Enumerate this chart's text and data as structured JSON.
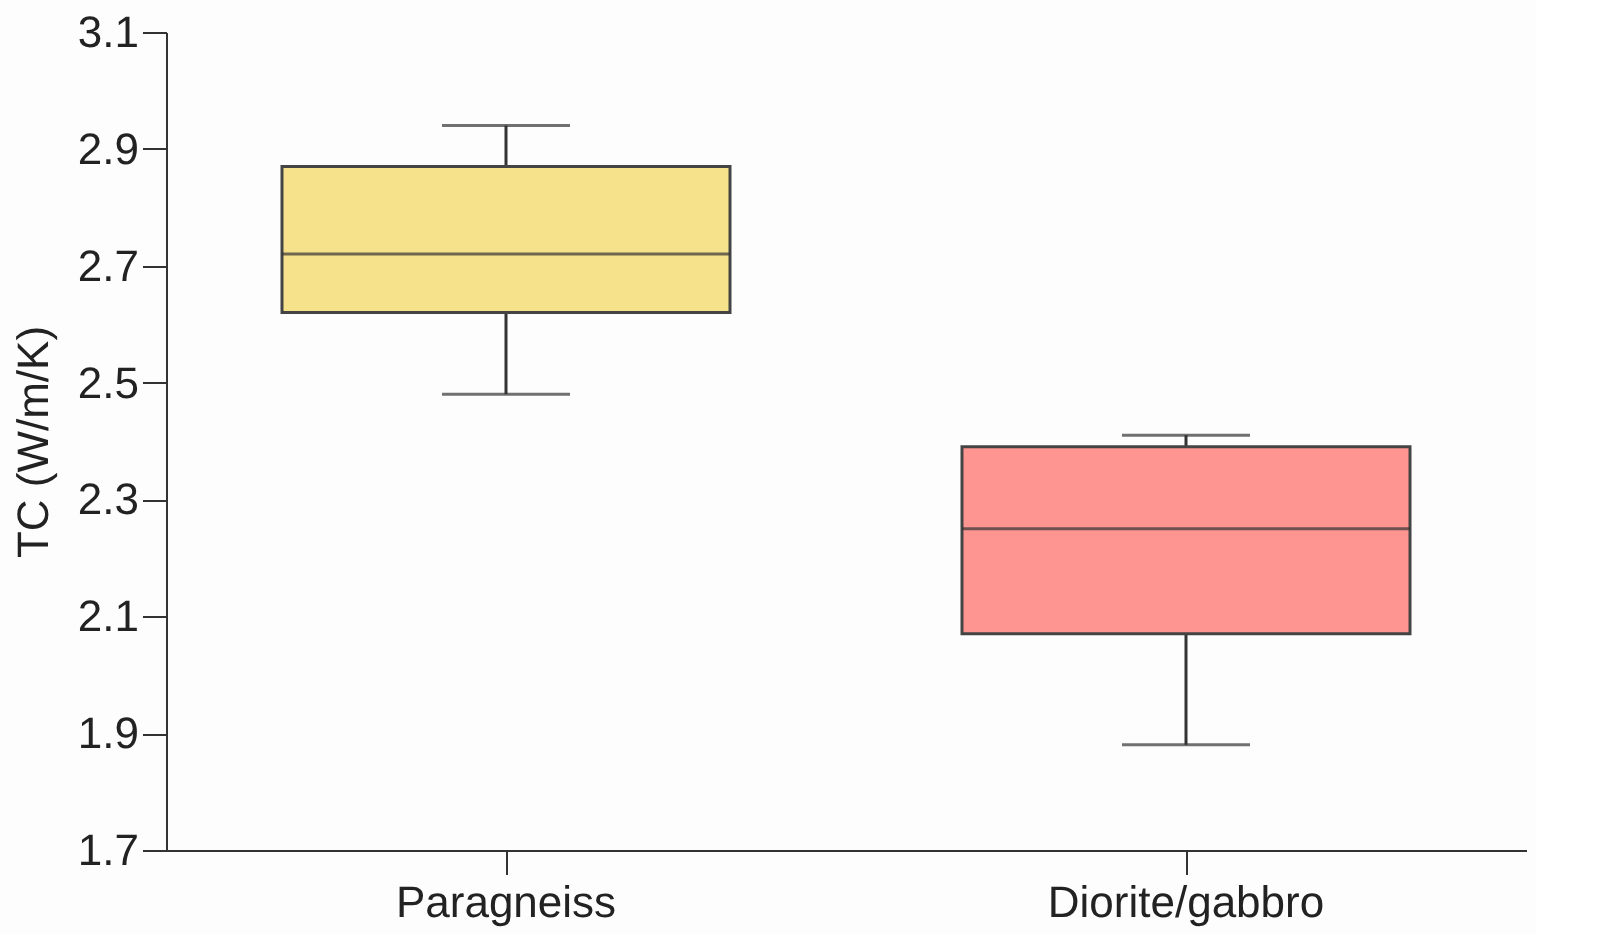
{
  "chart_data": {
    "type": "box",
    "ylabel": "TC (W/m/K)",
    "categories": [
      "Paragneiss",
      "Diorite/gabbro"
    ],
    "colors": [
      "#f7e28c",
      "#fe9591"
    ],
    "boxes": [
      {
        "low": 2.48,
        "q1": 2.62,
        "median": 2.72,
        "q3": 2.87,
        "high": 2.94
      },
      {
        "low": 1.88,
        "q1": 2.07,
        "median": 2.25,
        "q3": 2.39,
        "high": 2.41
      }
    ],
    "ylim": [
      1.7,
      3.1
    ],
    "yticks": [
      1.7,
      1.9,
      2.1,
      2.3,
      2.5,
      2.7,
      2.9,
      3.1
    ],
    "grid": false,
    "legend": false
  }
}
